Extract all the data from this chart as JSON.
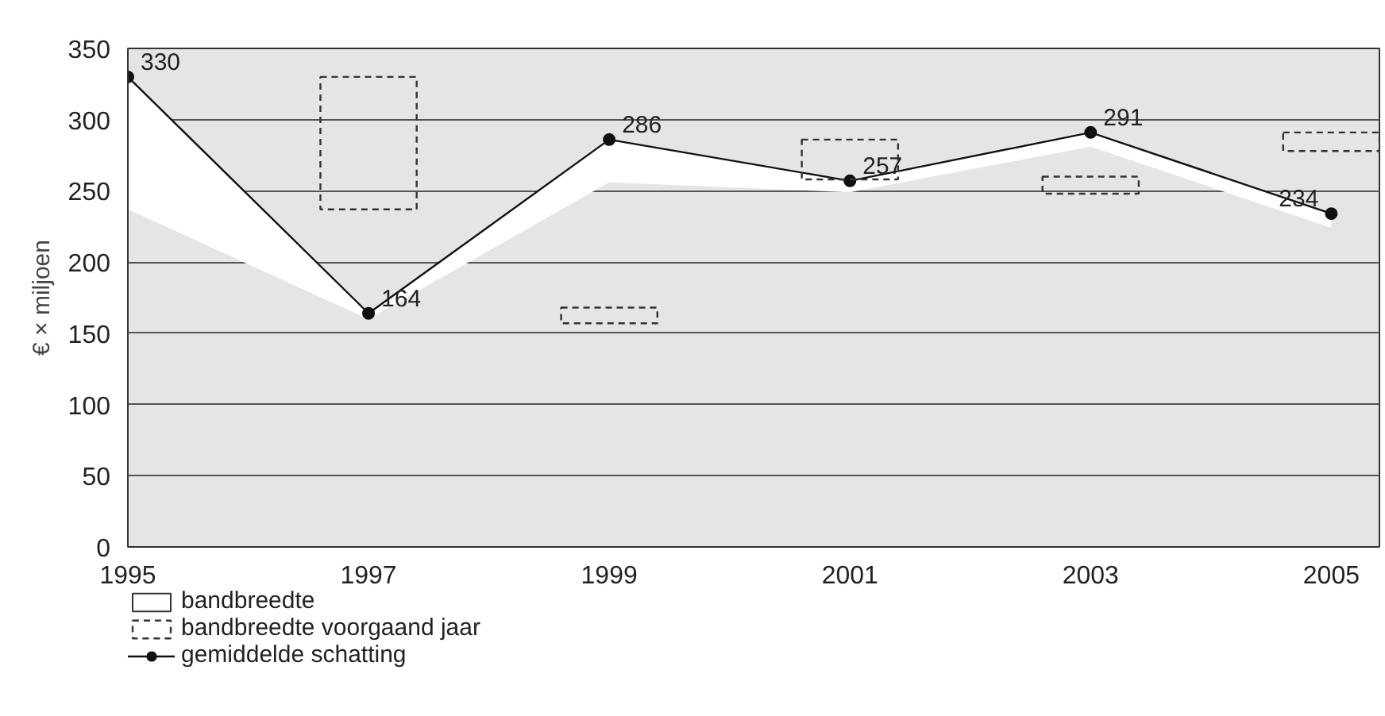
{
  "chart_data": {
    "type": "line",
    "ylabel": "€ × miljoen",
    "annotations": [
      "bandbreedte"
    ],
    "x": [
      1995,
      1997,
      1999,
      2001,
      2003,
      2005
    ],
    "xlim": [
      1995,
      2005.4
    ],
    "xticks": [
      1995,
      1997,
      1999,
      2001,
      2003,
      2005
    ],
    "ylim": [
      0,
      350
    ],
    "yticks": [
      0,
      50,
      100,
      150,
      200,
      250,
      300,
      350
    ],
    "grid": "y",
    "legend": "bottom",
    "series": [
      {
        "name": "bandbreedte voorgaand jaar",
        "type": "bar",
        "color": "#333333",
        "line_style": "dashed",
        "base": [
          null,
          237,
          157,
          258,
          248,
          278
        ],
        "values": [
          null,
          93,
          11,
          28,
          12,
          13
        ]
      },
      {
        "name": "gemiddelde schatting",
        "color": "#111111",
        "marker": "circle",
        "data_labels": true,
        "values": [
          330,
          164,
          286,
          257,
          291,
          234
        ],
        "lower": [
          237,
          160,
          256,
          249,
          281,
          224
        ],
        "upper": [
          330,
          164,
          286,
          258,
          292,
          234
        ]
      }
    ]
  }
}
